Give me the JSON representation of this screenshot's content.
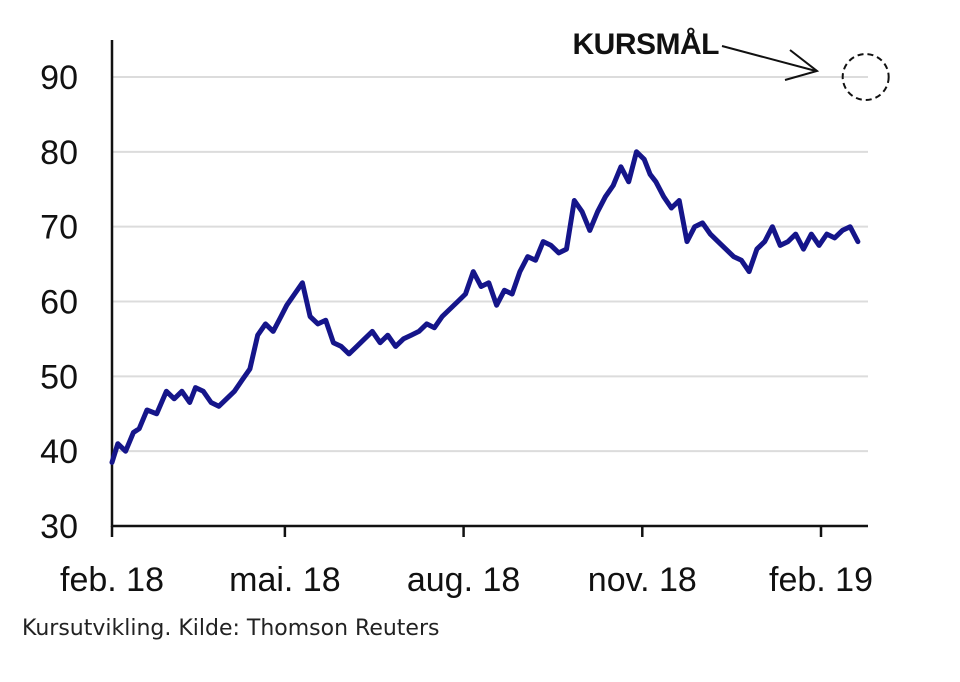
{
  "chart_data": {
    "type": "line",
    "title": "",
    "xlabel": "",
    "ylabel": "",
    "ylim": [
      30,
      95
    ],
    "y_ticks": [
      30,
      40,
      50,
      60,
      70,
      80,
      90
    ],
    "grid": "horizontal",
    "x_tick_labels": [
      "feb. 18",
      "mai. 18",
      "aug. 18",
      "nov. 18",
      "feb. 19"
    ],
    "x_tick_dates": [
      "2018-02-01",
      "2018-05-01",
      "2018-08-01",
      "2018-11-01",
      "2019-02-01"
    ],
    "xlim": [
      "2018-02-01",
      "2019-02-22"
    ],
    "line_color": "#15158a",
    "series": [
      {
        "x": [
          "2018-02-01",
          "2018-02-04",
          "2018-02-08",
          "2018-02-12",
          "2018-02-15",
          "2018-02-19",
          "2018-02-24",
          "2018-03-01",
          "2018-03-05",
          "2018-03-09",
          "2018-03-13",
          "2018-03-16",
          "2018-03-20",
          "2018-03-24",
          "2018-03-28",
          "2018-04-01",
          "2018-04-05",
          "2018-04-09",
          "2018-04-13",
          "2018-04-17",
          "2018-04-21",
          "2018-04-25",
          "2018-04-29",
          "2018-05-02",
          "2018-05-06",
          "2018-05-10",
          "2018-05-14",
          "2018-05-18",
          "2018-05-22",
          "2018-05-26",
          "2018-05-30",
          "2018-06-03",
          "2018-06-07",
          "2018-06-11",
          "2018-06-15",
          "2018-06-19",
          "2018-06-23",
          "2018-06-27",
          "2018-07-01",
          "2018-07-05",
          "2018-07-09",
          "2018-07-13",
          "2018-07-17",
          "2018-07-21",
          "2018-07-25",
          "2018-07-29",
          "2018-08-02",
          "2018-08-06",
          "2018-08-10",
          "2018-08-14",
          "2018-08-18",
          "2018-08-22",
          "2018-08-26",
          "2018-08-30",
          "2018-09-03",
          "2018-09-07",
          "2018-09-11",
          "2018-09-15",
          "2018-09-19",
          "2018-09-23",
          "2018-09-27",
          "2018-10-01",
          "2018-10-05",
          "2018-10-09",
          "2018-10-13",
          "2018-10-17",
          "2018-10-21",
          "2018-10-25",
          "2018-10-29",
          "2018-11-02",
          "2018-11-05",
          "2018-11-08",
          "2018-11-12",
          "2018-11-16",
          "2018-11-20",
          "2018-11-24",
          "2018-11-28",
          "2018-12-02",
          "2018-12-06",
          "2018-12-10",
          "2018-12-14",
          "2018-12-18",
          "2018-12-22",
          "2018-12-26",
          "2018-12-30",
          "2019-01-03",
          "2019-01-07",
          "2019-01-11",
          "2019-01-15",
          "2019-01-19",
          "2019-01-23",
          "2019-01-27",
          "2019-01-31",
          "2019-02-04",
          "2019-02-08",
          "2019-02-12",
          "2019-02-16",
          "2019-02-20"
        ],
        "y": [
          38.5,
          41,
          40,
          42.5,
          43,
          45.5,
          45,
          48,
          47,
          48,
          46.5,
          48.5,
          48,
          46.5,
          46,
          47,
          48,
          49.5,
          51,
          55.5,
          57,
          56,
          58,
          59.5,
          61,
          62.5,
          58,
          57,
          57.5,
          54.5,
          54,
          53,
          54,
          55,
          56,
          54.5,
          55.5,
          54,
          55,
          55.5,
          56,
          57,
          56.5,
          58,
          59,
          60,
          61,
          64,
          62,
          62.5,
          59.5,
          61.5,
          61,
          64,
          66,
          65.5,
          68,
          67.5,
          66.5,
          67,
          73.5,
          72,
          69.5,
          72,
          74,
          75.5,
          78,
          76,
          80,
          79,
          77,
          76,
          74,
          72.5,
          73.5,
          68,
          70,
          70.5,
          69,
          68,
          67,
          66,
          65.5,
          64,
          67,
          68,
          70,
          67.5,
          68,
          69,
          67,
          69,
          67.5,
          69,
          68.5,
          69.5,
          70,
          68
        ]
      }
    ],
    "annotation": {
      "label": "KURSMÅL",
      "target_date": "2019-02-24",
      "target_value": 90
    },
    "caption": "Kursutvikling. Kilde: Thomson Reuters"
  }
}
